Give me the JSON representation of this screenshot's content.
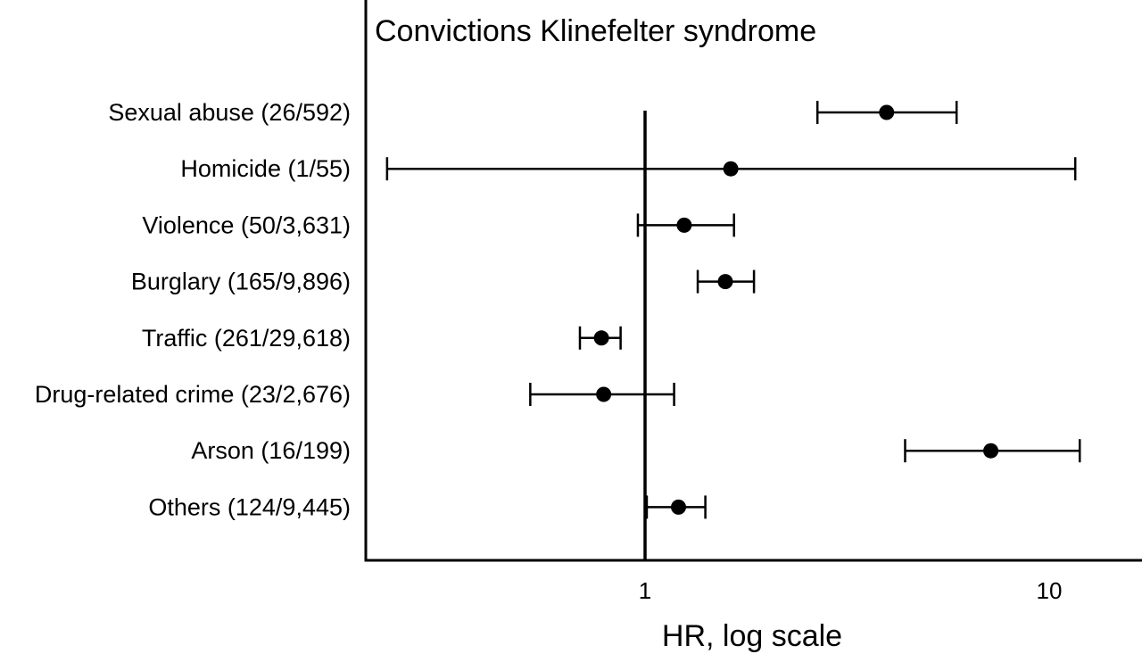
{
  "chart_data": {
    "type": "scatter",
    "subtype": "forest-plot",
    "title": "Convictions Klinefelter syndrome",
    "xlabel": "HR, log scale",
    "xscale": "log",
    "xlim": [
      0.22,
      15
    ],
    "xticks": [
      {
        "value": 1,
        "label": "1"
      },
      {
        "value": 10,
        "label": "10"
      }
    ],
    "reference_line": 1,
    "grid": false,
    "legend": "none",
    "categories": [
      "Sexual abuse (26/592)",
      "Homicide (1/55)",
      "Violence (50/3,631)",
      "Burglary (165/9,896)",
      "Traffic (261/29,618)",
      "Drug-related crime (23/2,676)",
      "Arson (16/199)",
      "Others (124/9,445)"
    ],
    "series": [
      {
        "hr": [
          3.96,
          1.63,
          1.25,
          1.58,
          0.78,
          0.79,
          7.17,
          1.21
        ],
        "ci_low": [
          2.67,
          0.23,
          0.96,
          1.35,
          0.69,
          0.52,
          4.4,
          1.01
        ],
        "ci_high": [
          5.9,
          11.6,
          1.66,
          1.86,
          0.87,
          1.18,
          11.9,
          1.41
        ]
      }
    ],
    "colors": {
      "ink": "#000000",
      "background": "#ffffff"
    }
  }
}
